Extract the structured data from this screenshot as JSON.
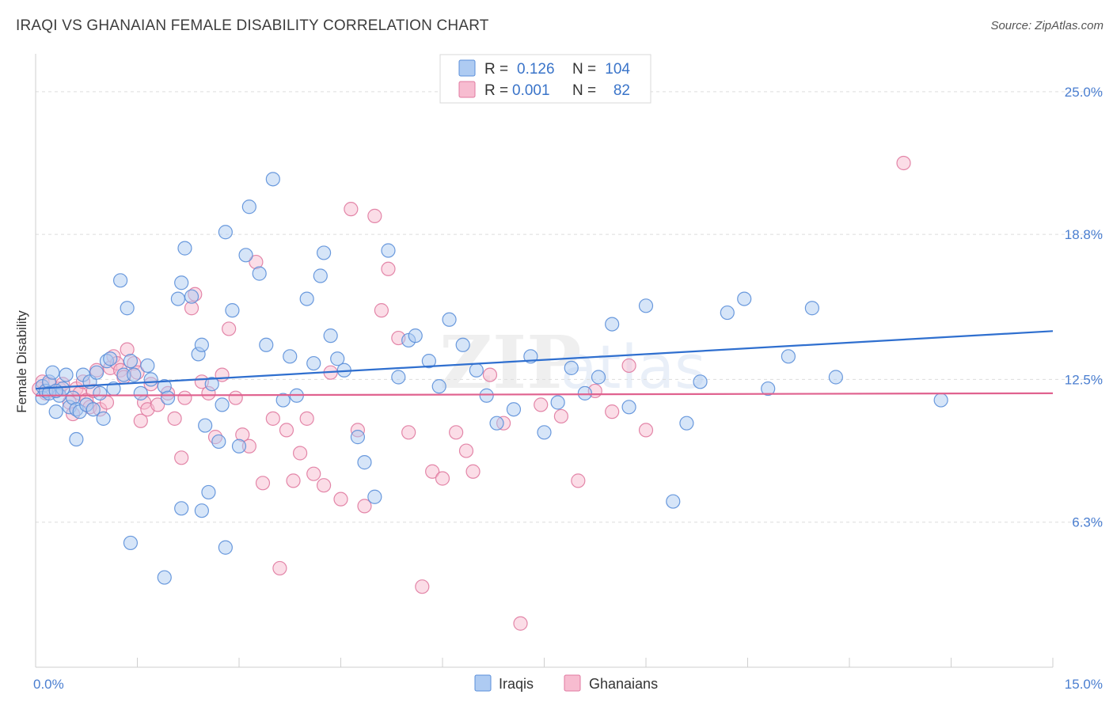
{
  "title": "IRAQI VS GHANAIAN FEMALE DISABILITY CORRELATION CHART",
  "source": "Source: ZipAtlas.com",
  "watermark": {
    "zip": "ZIP",
    "atlas": "atlas"
  },
  "colors": {
    "iraqis_fill": "#aecbf2",
    "iraqis_stroke": "#5b8fd9",
    "iraqis_line": "#2f6fcf",
    "ghanaians_fill": "#f7bcd0",
    "ghanaians_stroke": "#e07aa0",
    "ghanaians_line": "#e0628f",
    "axis_text": "#4a7ed0",
    "grid": "#dddddd"
  },
  "legend": {
    "rows": [
      {
        "r_label": "R =",
        "r_value": "0.126",
        "n_label": "N =",
        "n_value": "104"
      },
      {
        "r_label": "R =",
        "r_value": "0.001",
        "n_label": "N =",
        "n_value": "82"
      }
    ]
  },
  "chart_data": {
    "type": "scatter",
    "title": "IRAQI VS GHANAIAN FEMALE DISABILITY CORRELATION CHART",
    "xlabel": "",
    "ylabel": "Female Disability",
    "xlim": [
      0,
      15
    ],
    "ylim": [
      0,
      26.3
    ],
    "x_tick_labels": [
      "0.0%",
      "15.0%"
    ],
    "y_ticks": [
      6.3,
      12.5,
      18.8,
      25.0
    ],
    "y_tick_labels": [
      "6.3%",
      "12.5%",
      "18.8%",
      "25.0%"
    ],
    "grid": true,
    "legend_placement": "top-center",
    "series": [
      {
        "name": "Iraqis",
        "r": 0.126,
        "n": 104,
        "trend": {
          "x": [
            0,
            15
          ],
          "y": [
            12.1,
            14.6
          ]
        },
        "points": [
          [
            0.1,
            12.2
          ],
          [
            0.1,
            11.7
          ],
          [
            0.15,
            12.0
          ],
          [
            0.2,
            12.4
          ],
          [
            0.25,
            12.8
          ],
          [
            0.3,
            11.1
          ],
          [
            0.35,
            11.8
          ],
          [
            0.4,
            12.1
          ],
          [
            0.45,
            12.7
          ],
          [
            0.5,
            11.3
          ],
          [
            0.55,
            11.7
          ],
          [
            0.6,
            11.2
          ],
          [
            0.65,
            11.1
          ],
          [
            0.7,
            12.7
          ],
          [
            0.75,
            11.4
          ],
          [
            0.8,
            12.4
          ],
          [
            0.85,
            11.2
          ],
          [
            0.9,
            12.8
          ],
          [
            0.95,
            11.9
          ],
          [
            1.0,
            10.8
          ],
          [
            1.05,
            13.3
          ],
          [
            1.1,
            13.4
          ],
          [
            1.15,
            12.1
          ],
          [
            1.25,
            16.8
          ],
          [
            1.3,
            12.7
          ],
          [
            1.35,
            15.6
          ],
          [
            1.4,
            13.3
          ],
          [
            1.45,
            12.7
          ],
          [
            1.55,
            11.9
          ],
          [
            1.65,
            13.1
          ],
          [
            1.7,
            12.5
          ],
          [
            1.9,
            12.2
          ],
          [
            1.95,
            11.7
          ],
          [
            2.1,
            16.0
          ],
          [
            2.15,
            16.7
          ],
          [
            2.2,
            18.2
          ],
          [
            2.3,
            16.1
          ],
          [
            2.4,
            13.6
          ],
          [
            2.45,
            14.0
          ],
          [
            2.5,
            10.5
          ],
          [
            2.6,
            12.3
          ],
          [
            2.7,
            9.8
          ],
          [
            2.75,
            11.4
          ],
          [
            2.8,
            18.9
          ],
          [
            2.9,
            15.5
          ],
          [
            3.0,
            9.6
          ],
          [
            3.1,
            17.9
          ],
          [
            3.15,
            20.0
          ],
          [
            3.3,
            17.1
          ],
          [
            3.4,
            14.0
          ],
          [
            3.5,
            21.2
          ],
          [
            3.65,
            11.6
          ],
          [
            3.75,
            13.5
          ],
          [
            3.85,
            11.8
          ],
          [
            4.0,
            16.0
          ],
          [
            4.1,
            13.2
          ],
          [
            4.2,
            17.0
          ],
          [
            4.25,
            18.0
          ],
          [
            4.35,
            14.4
          ],
          [
            4.45,
            13.4
          ],
          [
            4.55,
            12.9
          ],
          [
            4.75,
            10.0
          ],
          [
            4.85,
            8.9
          ],
          [
            5.0,
            7.4
          ],
          [
            5.2,
            18.1
          ],
          [
            5.35,
            12.6
          ],
          [
            5.5,
            14.2
          ],
          [
            5.6,
            14.4
          ],
          [
            5.8,
            13.3
          ],
          [
            5.95,
            12.2
          ],
          [
            6.1,
            15.1
          ],
          [
            6.3,
            14.0
          ],
          [
            6.5,
            12.9
          ],
          [
            6.65,
            11.8
          ],
          [
            6.8,
            10.6
          ],
          [
            7.05,
            11.2
          ],
          [
            7.3,
            13.5
          ],
          [
            7.5,
            10.2
          ],
          [
            7.7,
            11.5
          ],
          [
            7.9,
            13.0
          ],
          [
            8.1,
            11.9
          ],
          [
            8.3,
            12.6
          ],
          [
            8.5,
            14.9
          ],
          [
            8.75,
            11.3
          ],
          [
            9.0,
            15.7
          ],
          [
            9.4,
            7.2
          ],
          [
            9.6,
            10.6
          ],
          [
            9.8,
            12.4
          ],
          [
            10.2,
            15.4
          ],
          [
            10.45,
            16.0
          ],
          [
            10.8,
            12.1
          ],
          [
            11.1,
            13.5
          ],
          [
            11.45,
            15.6
          ],
          [
            11.8,
            12.6
          ],
          [
            13.35,
            11.6
          ],
          [
            0.6,
            9.9
          ],
          [
            1.4,
            5.4
          ],
          [
            1.9,
            3.9
          ],
          [
            2.15,
            6.9
          ],
          [
            2.45,
            6.8
          ],
          [
            2.8,
            5.2
          ],
          [
            2.55,
            7.6
          ],
          [
            0.2,
            11.9
          ],
          [
            0.3,
            12.0
          ]
        ]
      },
      {
        "name": "Ghanaians",
        "r": 0.001,
        "n": 82,
        "trend": {
          "x": [
            0,
            15
          ],
          "y": [
            11.8,
            11.9
          ]
        },
        "points": [
          [
            0.05,
            12.1
          ],
          [
            0.1,
            12.4
          ],
          [
            0.15,
            11.9
          ],
          [
            0.2,
            12.3
          ],
          [
            0.3,
            12.0
          ],
          [
            0.35,
            12.1
          ],
          [
            0.4,
            12.3
          ],
          [
            0.5,
            11.5
          ],
          [
            0.55,
            11.0
          ],
          [
            0.6,
            12.1
          ],
          [
            0.65,
            11.9
          ],
          [
            0.7,
            12.4
          ],
          [
            0.75,
            11.6
          ],
          [
            0.8,
            11.3
          ],
          [
            0.85,
            12.0
          ],
          [
            0.9,
            12.9
          ],
          [
            0.95,
            11.2
          ],
          [
            1.05,
            11.5
          ],
          [
            1.1,
            13.0
          ],
          [
            1.15,
            13.5
          ],
          [
            1.2,
            13.2
          ],
          [
            1.25,
            12.9
          ],
          [
            1.3,
            12.6
          ],
          [
            1.35,
            13.8
          ],
          [
            1.45,
            13.2
          ],
          [
            1.5,
            12.8
          ],
          [
            1.55,
            10.7
          ],
          [
            1.6,
            11.5
          ],
          [
            1.65,
            11.2
          ],
          [
            1.7,
            12.3
          ],
          [
            1.8,
            11.4
          ],
          [
            1.95,
            11.9
          ],
          [
            2.05,
            10.8
          ],
          [
            2.15,
            9.1
          ],
          [
            2.2,
            11.7
          ],
          [
            2.3,
            15.6
          ],
          [
            2.35,
            16.2
          ],
          [
            2.45,
            12.4
          ],
          [
            2.55,
            11.9
          ],
          [
            2.65,
            10.0
          ],
          [
            2.75,
            12.7
          ],
          [
            2.85,
            14.7
          ],
          [
            2.95,
            11.7
          ],
          [
            3.05,
            10.1
          ],
          [
            3.15,
            9.6
          ],
          [
            3.25,
            17.6
          ],
          [
            3.35,
            8.0
          ],
          [
            3.5,
            10.8
          ],
          [
            3.6,
            4.3
          ],
          [
            3.7,
            10.3
          ],
          [
            3.8,
            8.1
          ],
          [
            3.9,
            9.3
          ],
          [
            4.0,
            10.8
          ],
          [
            4.1,
            8.4
          ],
          [
            4.25,
            7.9
          ],
          [
            4.35,
            12.8
          ],
          [
            4.5,
            7.3
          ],
          [
            4.65,
            19.9
          ],
          [
            4.75,
            10.3
          ],
          [
            4.85,
            7.0
          ],
          [
            5.0,
            19.6
          ],
          [
            5.1,
            15.5
          ],
          [
            5.2,
            17.3
          ],
          [
            5.35,
            14.3
          ],
          [
            5.5,
            10.2
          ],
          [
            5.7,
            3.5
          ],
          [
            5.85,
            8.5
          ],
          [
            6.0,
            8.2
          ],
          [
            6.2,
            10.2
          ],
          [
            6.35,
            9.4
          ],
          [
            6.45,
            8.5
          ],
          [
            6.7,
            12.7
          ],
          [
            6.9,
            10.6
          ],
          [
            7.15,
            1.9
          ],
          [
            7.45,
            11.4
          ],
          [
            7.75,
            10.9
          ],
          [
            8.0,
            8.1
          ],
          [
            8.25,
            12.0
          ],
          [
            8.5,
            11.1
          ],
          [
            8.75,
            13.1
          ],
          [
            9.0,
            10.3
          ],
          [
            12.8,
            21.9
          ]
        ]
      }
    ]
  },
  "bottom_legend": [
    "Iraqis",
    "Ghanaians"
  ]
}
